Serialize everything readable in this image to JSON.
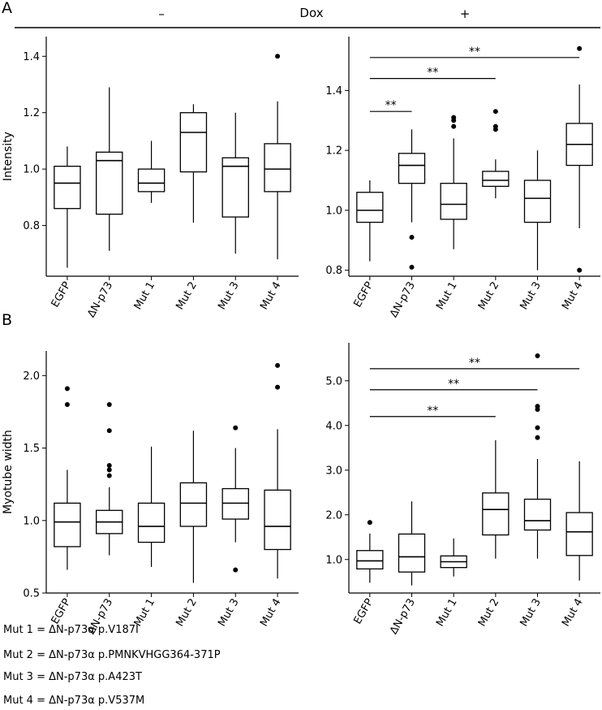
{
  "panels": {
    "a": "A",
    "b": "B"
  },
  "dox": {
    "label": "Dox",
    "minus": "–",
    "plus": "+"
  },
  "sig_label": "**",
  "legend": [
    "Mut 1 = ΔN-p73α p.V187I",
    "Mut 2 = ΔN-p73α p.PMNKVHGG364-371P",
    "Mut 3 = ΔN-p73α p.A423T",
    "Mut 4 = ΔN-p73α p.V537M"
  ],
  "chart_data": [
    {
      "type": "box",
      "panel": "A",
      "condition": "Dox –",
      "ylabel": "Intensity",
      "ylim": [
        0.62,
        1.47
      ],
      "yticks": [
        0.8,
        1.0,
        1.2,
        1.4
      ],
      "tick_labels": [
        "0.8",
        "1.0",
        "1.2",
        "1.4"
      ],
      "categories": [
        "EGFP",
        "ΔN-p73",
        "Mut 1",
        "Mut 2",
        "Mut 3",
        "Mut 4"
      ],
      "boxes": [
        {
          "min": 0.65,
          "q1": 0.86,
          "median": 0.95,
          "q3": 1.01,
          "max": 1.08,
          "outliers": []
        },
        {
          "min": 0.71,
          "q1": 0.84,
          "median": 1.03,
          "q3": 1.06,
          "max": 1.29,
          "outliers": []
        },
        {
          "min": 0.88,
          "q1": 0.92,
          "median": 0.95,
          "q3": 1.0,
          "max": 1.1,
          "outliers": []
        },
        {
          "min": 0.81,
          "q1": 0.99,
          "median": 1.13,
          "q3": 1.2,
          "max": 1.23,
          "outliers": []
        },
        {
          "min": 0.7,
          "q1": 0.83,
          "median": 1.01,
          "q3": 1.04,
          "max": 1.2,
          "outliers": []
        },
        {
          "min": 0.68,
          "q1": 0.92,
          "median": 1.0,
          "q3": 1.09,
          "max": 1.24,
          "outliers": [
            1.4
          ]
        }
      ],
      "significance": []
    },
    {
      "type": "box",
      "panel": "A",
      "condition": "Dox +",
      "ylabel": "",
      "ylim": [
        0.78,
        1.58
      ],
      "yticks": [
        0.8,
        1.0,
        1.2,
        1.4
      ],
      "tick_labels": [
        "0.8",
        "1.0",
        "1.2",
        "1.4"
      ],
      "categories": [
        "EGFP",
        "ΔN-p73",
        "Mut 1",
        "Mut 2",
        "Mut 3",
        "Mut 4"
      ],
      "boxes": [
        {
          "min": 0.83,
          "q1": 0.96,
          "median": 1.0,
          "q3": 1.06,
          "max": 1.1,
          "outliers": []
        },
        {
          "min": 0.96,
          "q1": 1.09,
          "median": 1.15,
          "q3": 1.19,
          "max": 1.27,
          "outliers": [
            0.91,
            0.81
          ]
        },
        {
          "min": 0.87,
          "q1": 0.97,
          "median": 1.02,
          "q3": 1.09,
          "max": 1.24,
          "outliers": [
            1.28,
            1.3,
            1.31
          ]
        },
        {
          "min": 1.04,
          "q1": 1.08,
          "median": 1.1,
          "q3": 1.13,
          "max": 1.17,
          "outliers": [
            1.27,
            1.28,
            1.33
          ]
        },
        {
          "min": 0.8,
          "q1": 0.96,
          "median": 1.04,
          "q3": 1.1,
          "max": 1.2,
          "outliers": []
        },
        {
          "min": 0.94,
          "q1": 1.15,
          "median": 1.22,
          "q3": 1.29,
          "max": 1.42,
          "outliers": [
            1.54,
            0.8
          ]
        }
      ],
      "significance": [
        {
          "from": 0,
          "to": 1,
          "label": "**",
          "y": 1.33
        },
        {
          "from": 0,
          "to": 3,
          "label": "**",
          "y": 1.44
        },
        {
          "from": 0,
          "to": 5,
          "label": "**",
          "y": 1.51
        }
      ]
    },
    {
      "type": "box",
      "panel": "B",
      "condition": "Dox –",
      "ylabel": "Myotube width",
      "ylim": [
        0.5,
        2.17
      ],
      "yticks": [
        0.5,
        1.0,
        1.5,
        2.0
      ],
      "tick_labels": [
        "0.5",
        "1.0",
        "1.5",
        "2.0"
      ],
      "categories": [
        "EGFP",
        "ΔN-p73",
        "Mut 1",
        "Mut 2",
        "Mut 3",
        "Mut 4"
      ],
      "boxes": [
        {
          "min": 0.66,
          "q1": 0.82,
          "median": 0.99,
          "q3": 1.12,
          "max": 1.35,
          "outliers": [
            1.8,
            1.91
          ]
        },
        {
          "min": 0.76,
          "q1": 0.91,
          "median": 0.99,
          "q3": 1.07,
          "max": 1.23,
          "outliers": [
            1.31,
            1.35,
            1.38,
            1.62,
            1.8
          ]
        },
        {
          "min": 0.68,
          "q1": 0.85,
          "median": 0.96,
          "q3": 1.12,
          "max": 1.51,
          "outliers": []
        },
        {
          "min": 0.57,
          "q1": 0.96,
          "median": 1.12,
          "q3": 1.26,
          "max": 1.62,
          "outliers": []
        },
        {
          "min": 0.85,
          "q1": 1.01,
          "median": 1.12,
          "q3": 1.22,
          "max": 1.5,
          "outliers": [
            1.64,
            0.66
          ]
        },
        {
          "min": 0.6,
          "q1": 0.8,
          "median": 0.96,
          "q3": 1.21,
          "max": 1.63,
          "outliers": [
            1.92,
            2.07
          ]
        }
      ],
      "significance": []
    },
    {
      "type": "box",
      "panel": "B",
      "condition": "Dox +",
      "ylabel": "",
      "ylim": [
        0.25,
        5.85
      ],
      "yticks": [
        1.0,
        2.0,
        3.0,
        4.0,
        5.0
      ],
      "tick_labels": [
        "1.0",
        "2.0",
        "3.0",
        "4.0",
        "5.0"
      ],
      "categories": [
        "EGFP",
        "ΔN-p73",
        "Mut 1",
        "Mut 2",
        "Mut 3",
        "Mut 4"
      ],
      "boxes": [
        {
          "min": 0.48,
          "q1": 0.79,
          "median": 0.97,
          "q3": 1.2,
          "max": 1.58,
          "outliers": [
            1.83
          ]
        },
        {
          "min": 0.42,
          "q1": 0.72,
          "median": 1.06,
          "q3": 1.57,
          "max": 2.3,
          "outliers": []
        },
        {
          "min": 0.62,
          "q1": 0.82,
          "median": 0.95,
          "q3": 1.08,
          "max": 1.47,
          "outliers": []
        },
        {
          "min": 1.02,
          "q1": 1.55,
          "median": 2.12,
          "q3": 2.49,
          "max": 3.67,
          "outliers": []
        },
        {
          "min": 1.02,
          "q1": 1.66,
          "median": 1.87,
          "q3": 2.35,
          "max": 3.25,
          "outliers": [
            3.73,
            3.95,
            4.36,
            4.43,
            5.56
          ]
        },
        {
          "min": 0.53,
          "q1": 1.09,
          "median": 1.62,
          "q3": 2.05,
          "max": 3.2,
          "outliers": []
        }
      ],
      "significance": [
        {
          "from": 0,
          "to": 3,
          "label": "**",
          "y": 4.2
        },
        {
          "from": 0,
          "to": 4,
          "label": "**",
          "y": 4.8
        },
        {
          "from": 0,
          "to": 5,
          "label": "**",
          "y": 5.27
        }
      ]
    }
  ]
}
